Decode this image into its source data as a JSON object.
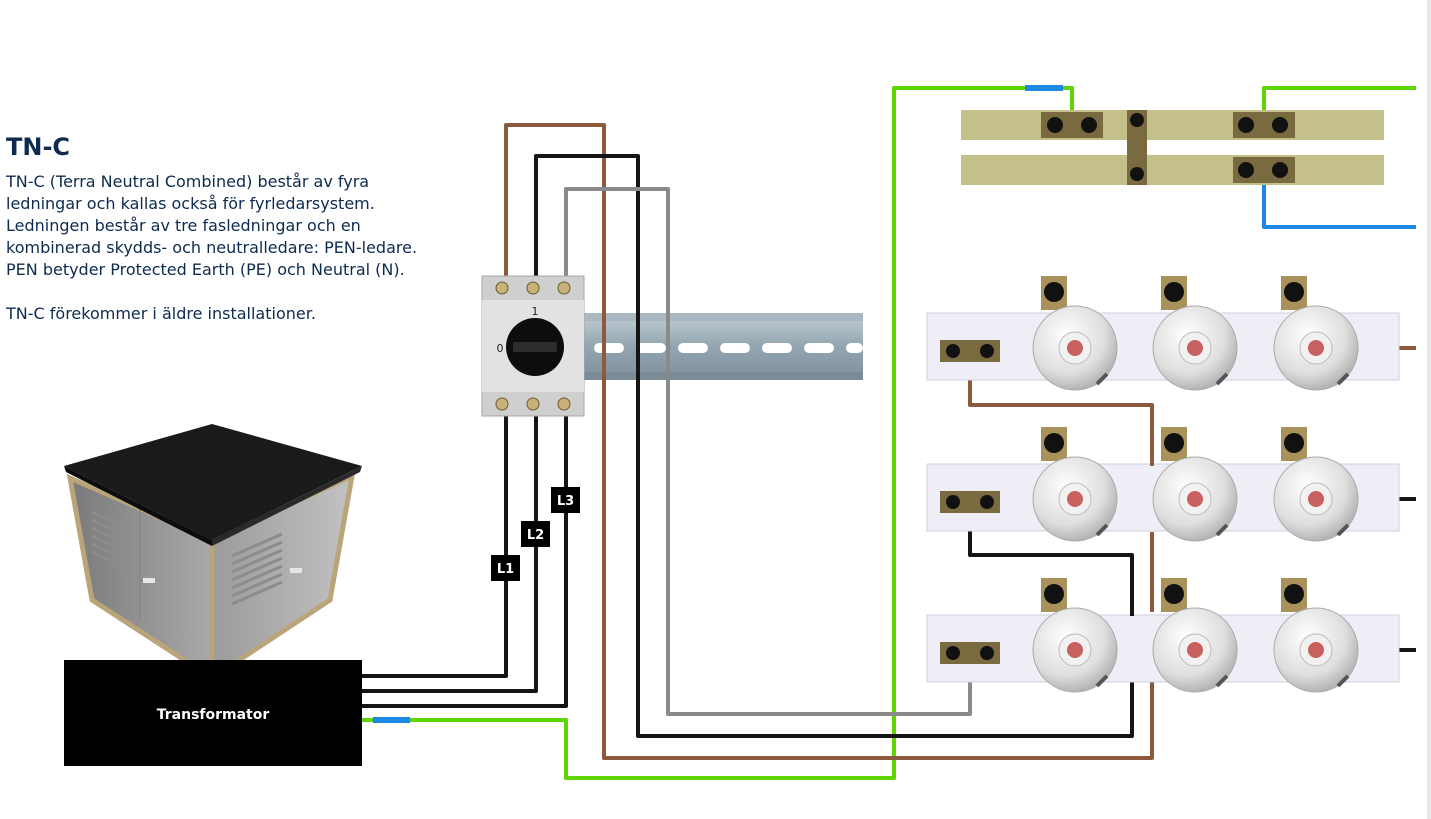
{
  "heading": "TN-C",
  "paragraphs": [
    "TN-C (Terra Neutral Combined) består av fyra ledningar och kallas också för fyrledarsystem. Ledningen består av tre fasledningar och en kombinerad skydds- och neutralledare: PEN-ledare. PEN betyder Protected Earth (PE) och Neutral (N).",
    "TN-C förekommer i äldre installationer."
  ],
  "transformer_label": "Transformator",
  "phase_labels": [
    "L1",
    "L2",
    "L3"
  ],
  "switch_positions": [
    "0",
    "1"
  ],
  "colors": {
    "text": "#0d2b4e",
    "brown": "#8b5a3c",
    "black": "#151515",
    "gray": "#8a8a8a",
    "green": "#5fd400",
    "blue": "#1e88e5",
    "busbar": "#c4c08a",
    "din_rail": "#9aaab3"
  },
  "icons": [
    "transformer-station-icon",
    "rotary-switch-icon",
    "fuse-holder-icon",
    "screw-terminal-icon"
  ]
}
